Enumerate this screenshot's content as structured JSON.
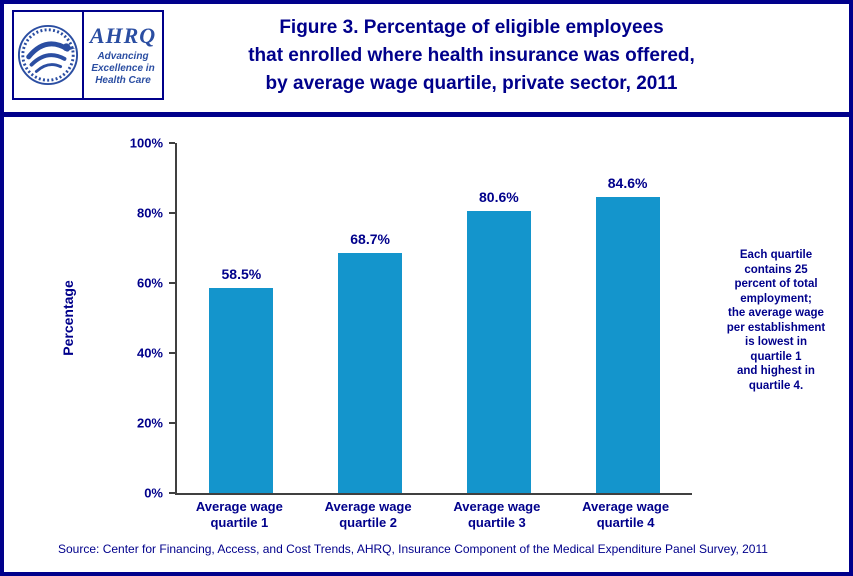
{
  "colors": {
    "navy": "#00008B",
    "bar_blue": "#1495CC",
    "logo_blue": "#2B4EA2",
    "axis": "#404040"
  },
  "header": {
    "title_lines": [
      "Figure 3. Percentage of eligible employees",
      "that enrolled where health insurance was offered,",
      "by average wage quartile, private sector, 2011"
    ],
    "logo": {
      "hhs_icon": "hhs-eagle-seal",
      "ahrq_acronym": "AHRQ",
      "tagline_lines": [
        "Advancing",
        "Excellence in",
        "Health Care"
      ]
    }
  },
  "chart_data": {
    "type": "bar",
    "title": "Figure 3. Percentage of eligible employees that enrolled where health insurance was offered, by average wage quartile, private sector, 2011",
    "categories": [
      "Average wage quartile 1",
      "Average wage quartile 2",
      "Average wage quartile 3",
      "Average wage quartile 4"
    ],
    "values": [
      58.5,
      68.7,
      80.6,
      84.6
    ],
    "value_labels": [
      "58.5%",
      "68.7%",
      "80.6%",
      "84.6%"
    ],
    "xlabel": "",
    "ylabel": "Percentage",
    "ylim": [
      0,
      100
    ],
    "ytick_labels": [
      "0%",
      "20%",
      "40%",
      "60%",
      "80%",
      "100%"
    ],
    "grid": false,
    "legend": false,
    "bar_color": "#1495CC",
    "annotation_lines": [
      "Each quartile",
      "contains 25",
      "percent of total",
      "employment;",
      "the average wage",
      "per establishment",
      "is lowest in",
      "quartile 1",
      "and highest in",
      "quartile 4."
    ]
  },
  "footer": {
    "source": "Source: Center for Financing, Access, and Cost Trends, AHRQ, Insurance Component of the Medical Expenditure Panel Survey, 2011"
  }
}
